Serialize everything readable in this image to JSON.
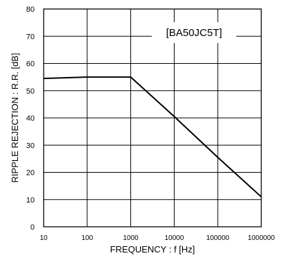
{
  "chart_data": {
    "type": "line",
    "x_scale": "log",
    "xlabel": "FREQUENCY : f [Hz]",
    "ylabel": "RIPPLE REJECTION : R.R. [dB]",
    "xlim": [
      10,
      1000000
    ],
    "ylim": [
      0,
      80
    ],
    "grid": true,
    "x_ticks": [
      10,
      100,
      1000,
      10000,
      100000,
      1000000
    ],
    "x_tick_labels": [
      "10",
      "100",
      "1000",
      "10000",
      "100000",
      "1000000"
    ],
    "y_ticks": [
      0,
      10,
      20,
      30,
      40,
      50,
      60,
      70,
      80
    ],
    "y_tick_labels": [
      "0",
      "10",
      "20",
      "30",
      "40",
      "50",
      "60",
      "70",
      "80"
    ],
    "annotation": "[BA50JC5T]",
    "series": [
      {
        "x": [
          10,
          100,
          1000,
          10000,
          100000,
          1000000
        ],
        "y": [
          54.5,
          55,
          55,
          40.5,
          25.5,
          11
        ]
      }
    ]
  }
}
